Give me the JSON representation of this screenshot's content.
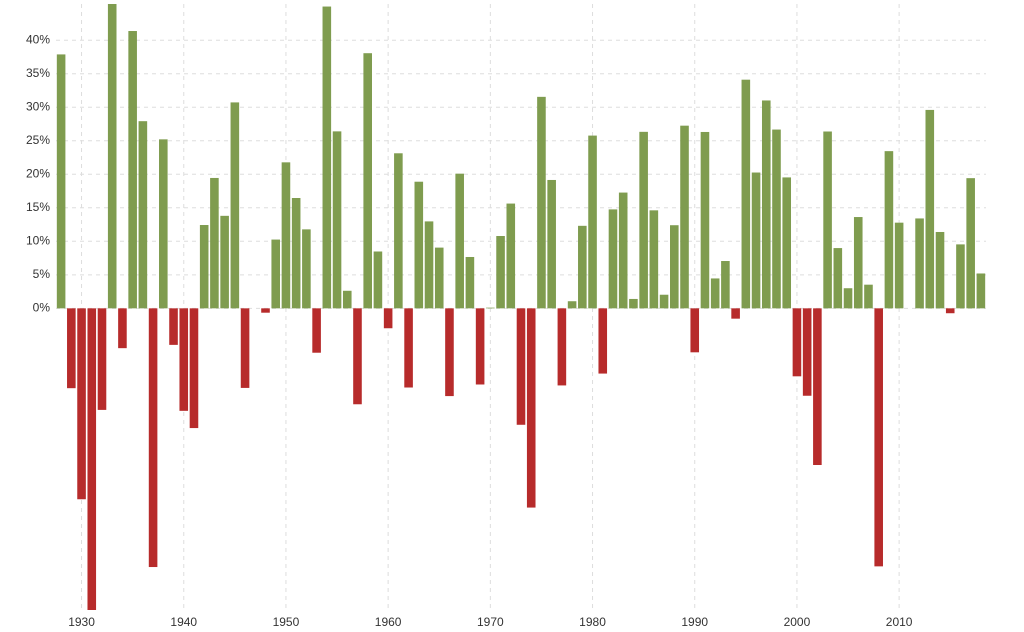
{
  "chart_data": {
    "type": "bar",
    "x": [
      1928,
      1929,
      1930,
      1931,
      1932,
      1933,
      1934,
      1935,
      1936,
      1937,
      1938,
      1939,
      1940,
      1941,
      1942,
      1943,
      1944,
      1945,
      1946,
      1947,
      1948,
      1949,
      1950,
      1951,
      1952,
      1953,
      1954,
      1955,
      1956,
      1957,
      1958,
      1959,
      1960,
      1961,
      1962,
      1963,
      1964,
      1965,
      1966,
      1967,
      1968,
      1969,
      1970,
      1971,
      1972,
      1973,
      1974,
      1975,
      1976,
      1977,
      1978,
      1979,
      1980,
      1981,
      1982,
      1983,
      1984,
      1985,
      1986,
      1987,
      1988,
      1989,
      1990,
      1991,
      1992,
      1993,
      1994,
      1995,
      1996,
      1997,
      1998,
      1999,
      2000,
      2001,
      2002,
      2003,
      2004,
      2005,
      2006,
      2007,
      2008,
      2009,
      2010,
      2011,
      2012,
      2013,
      2014,
      2015,
      2016,
      2017,
      2018
    ],
    "values": [
      37.88,
      -11.91,
      -28.48,
      -47.07,
      -15.15,
      46.59,
      -5.94,
      41.37,
      27.92,
      -38.59,
      25.21,
      -5.45,
      -15.29,
      -17.86,
      12.43,
      19.45,
      13.8,
      30.72,
      -11.87,
      0,
      -0.65,
      10.26,
      21.78,
      16.46,
      11.78,
      -6.62,
      45.02,
      26.4,
      2.62,
      -14.31,
      38.06,
      8.48,
      -2.97,
      23.13,
      -11.81,
      18.89,
      12.97,
      9.06,
      -13.09,
      20.09,
      7.66,
      -11.36,
      0.1,
      10.79,
      15.63,
      -17.37,
      -29.72,
      31.55,
      19.15,
      -11.5,
      1.06,
      12.31,
      25.77,
      -9.73,
      14.76,
      17.27,
      1.4,
      26.33,
      14.62,
      2.03,
      12.4,
      27.25,
      -6.56,
      26.31,
      4.46,
      7.06,
      -1.54,
      34.11,
      20.26,
      31.01,
      26.67,
      19.53,
      -10.14,
      -13.04,
      -23.37,
      26.38,
      8.99,
      3,
      13.62,
      3.53,
      -38.49,
      23.45,
      12.78,
      0,
      13.41,
      29.6,
      11.39,
      -0.73,
      9.54,
      19.42,
      5.2
    ],
    "positive_color": "#7f9c4f",
    "negative_color": "#b72b2b",
    "xlim": [
      1927.5,
      2018.5
    ],
    "xticks": [
      1930,
      1940,
      1950,
      1960,
      1970,
      1980,
      1990,
      2000,
      2010
    ],
    "ylim": [
      -45,
      45.4
    ],
    "yticks": [
      {
        "value": 0,
        "label": "0%"
      },
      {
        "value": 5,
        "label": "5%"
      },
      {
        "value": 10,
        "label": "10%"
      },
      {
        "value": 15,
        "label": "15%"
      },
      {
        "value": 20,
        "label": "20%"
      },
      {
        "value": 25,
        "label": "25%"
      },
      {
        "value": 30,
        "label": "30%"
      },
      {
        "value": 35,
        "label": "35%"
      },
      {
        "value": 40,
        "label": "40%"
      }
    ],
    "grid": true
  }
}
